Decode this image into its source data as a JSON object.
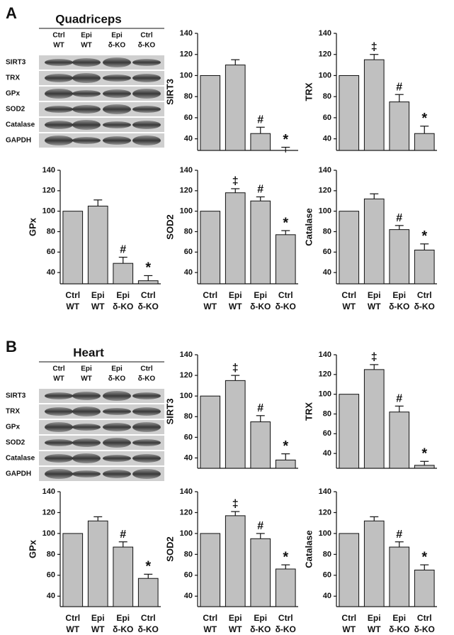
{
  "panels": [
    {
      "letter": "A",
      "title": "Quadriceps",
      "lanes": [
        [
          "Ctrl",
          "WT"
        ],
        [
          "Epi",
          "WT"
        ],
        [
          "Epi",
          "δ-KO"
        ],
        [
          "Ctrl",
          "δ-KO"
        ]
      ],
      "rows": [
        "SIRT3",
        "TRX",
        "GPx",
        "SOD2",
        "Catalase",
        "GAPDH"
      ]
    },
    {
      "letter": "B",
      "title": "Heart",
      "lanes": [
        [
          "Ctrl",
          "WT"
        ],
        [
          "Epi",
          "WT"
        ],
        [
          "Epi",
          "δ-KO"
        ],
        [
          "Ctrl",
          "δ-KO"
        ]
      ],
      "rows": [
        "SIRT3",
        "TRX",
        "GPx",
        "SOD2",
        "Catalase",
        "GAPDH"
      ]
    }
  ],
  "chart_data": [
    {
      "type": "bar",
      "ylabel": "SIRT3",
      "values": [
        100,
        110,
        45,
        27
      ],
      "errors": [
        0,
        5,
        6,
        5
      ],
      "annotations": [
        null,
        null,
        "#",
        "*"
      ],
      "ylim": [
        29,
        140
      ],
      "yticks": [
        40,
        60,
        80,
        100,
        120,
        140
      ],
      "color": "#c0c0c0"
    },
    {
      "type": "bar",
      "ylabel": "TRX",
      "values": [
        100,
        115,
        75,
        45
      ],
      "errors": [
        0,
        5,
        7,
        7
      ],
      "annotations": [
        null,
        "‡",
        "#",
        "*"
      ],
      "ylim": [
        29,
        140
      ],
      "yticks": [
        40,
        60,
        80,
        100,
        120,
        140
      ],
      "color": "#c0c0c0"
    },
    {
      "type": "bar",
      "ylabel": "GPx",
      "categories": [
        [
          "Ctrl",
          "WT"
        ],
        [
          "Epi",
          "WT"
        ],
        [
          "Epi",
          "δ-KO"
        ],
        [
          "Ctrl",
          "δ-KO"
        ]
      ],
      "values": [
        100,
        105,
        49,
        32
      ],
      "errors": [
        0,
        6,
        6,
        5
      ],
      "annotations": [
        null,
        null,
        "#",
        "*"
      ],
      "ylim": [
        29,
        140
      ],
      "yticks": [
        40,
        60,
        80,
        100,
        120,
        140
      ],
      "color": "#c0c0c0"
    },
    {
      "type": "bar",
      "ylabel": "SOD2",
      "categories": [
        [
          "Ctrl",
          "WT"
        ],
        [
          "Epi",
          "WT"
        ],
        [
          "Epi",
          "δ-KO"
        ],
        [
          "Ctrl",
          "δ-KO"
        ]
      ],
      "values": [
        100,
        118,
        110,
        77
      ],
      "errors": [
        0,
        4,
        4,
        4
      ],
      "annotations": [
        null,
        "‡",
        "#",
        "*"
      ],
      "ylim": [
        29,
        140
      ],
      "yticks": [
        40,
        60,
        80,
        100,
        120,
        140
      ],
      "color": "#c0c0c0"
    },
    {
      "type": "bar",
      "ylabel": "Catalase",
      "categories": [
        [
          "Ctrl",
          "WT"
        ],
        [
          "Epi",
          "WT"
        ],
        [
          "Epi",
          "δ-KO"
        ],
        [
          "Ctrl",
          "δ-KO"
        ]
      ],
      "values": [
        100,
        112,
        82,
        62
      ],
      "errors": [
        0,
        5,
        4,
        6
      ],
      "annotations": [
        null,
        null,
        "#",
        "*"
      ],
      "ylim": [
        29,
        140
      ],
      "yticks": [
        40,
        60,
        80,
        100,
        120,
        140
      ],
      "color": "#c0c0c0"
    },
    {
      "type": "bar",
      "ylabel": "SIRT3",
      "values": [
        100,
        115,
        75,
        38
      ],
      "errors": [
        0,
        5,
        6,
        6
      ],
      "annotations": [
        null,
        "‡",
        "#",
        "*"
      ],
      "ylim": [
        30,
        140
      ],
      "yticks": [
        40,
        60,
        80,
        100,
        120,
        140
      ],
      "color": "#c0c0c0"
    },
    {
      "type": "bar",
      "ylabel": "TRX",
      "values": [
        100,
        125,
        82,
        28
      ],
      "errors": [
        0,
        5,
        6,
        4
      ],
      "annotations": [
        null,
        "‡",
        "#",
        "*"
      ],
      "ylim": [
        25,
        140
      ],
      "yticks": [
        40,
        60,
        80,
        100,
        120,
        140
      ],
      "color": "#c0c0c0"
    },
    {
      "type": "bar",
      "ylabel": "GPx",
      "categories": [
        [
          "Ctrl",
          "WT"
        ],
        [
          "Epi",
          "WT"
        ],
        [
          "Epi",
          "δ-KO"
        ],
        [
          "Ctrl",
          "δ-KO"
        ]
      ],
      "values": [
        100,
        112,
        87,
        57
      ],
      "errors": [
        0,
        4,
        5,
        4
      ],
      "annotations": [
        null,
        null,
        "#",
        "*"
      ],
      "ylim": [
        30,
        140
      ],
      "yticks": [
        40,
        60,
        80,
        100,
        120,
        140
      ],
      "color": "#c0c0c0"
    },
    {
      "type": "bar",
      "ylabel": "SOD2",
      "categories": [
        [
          "Ctrl",
          "WT"
        ],
        [
          "Epi",
          "WT"
        ],
        [
          "Epi",
          "δ-KO"
        ],
        [
          "Ctrl",
          "δ-KO"
        ]
      ],
      "values": [
        100,
        117,
        95,
        66
      ],
      "errors": [
        0,
        4,
        5,
        4
      ],
      "annotations": [
        null,
        "‡",
        "#",
        "*"
      ],
      "ylim": [
        30,
        140
      ],
      "yticks": [
        40,
        60,
        80,
        100,
        120,
        140
      ],
      "color": "#c0c0c0"
    },
    {
      "type": "bar",
      "ylabel": "Catalase",
      "categories": [
        [
          "Ctrl",
          "WT"
        ],
        [
          "Epi",
          "WT"
        ],
        [
          "Epi",
          "δ-KO"
        ],
        [
          "Ctrl",
          "δ-KO"
        ]
      ],
      "values": [
        100,
        112,
        87,
        65
      ],
      "errors": [
        0,
        4,
        5,
        5
      ],
      "annotations": [
        null,
        null,
        "#",
        "*"
      ],
      "ylim": [
        30,
        140
      ],
      "yticks": [
        40,
        60,
        80,
        100,
        120,
        140
      ],
      "color": "#c0c0c0"
    }
  ]
}
